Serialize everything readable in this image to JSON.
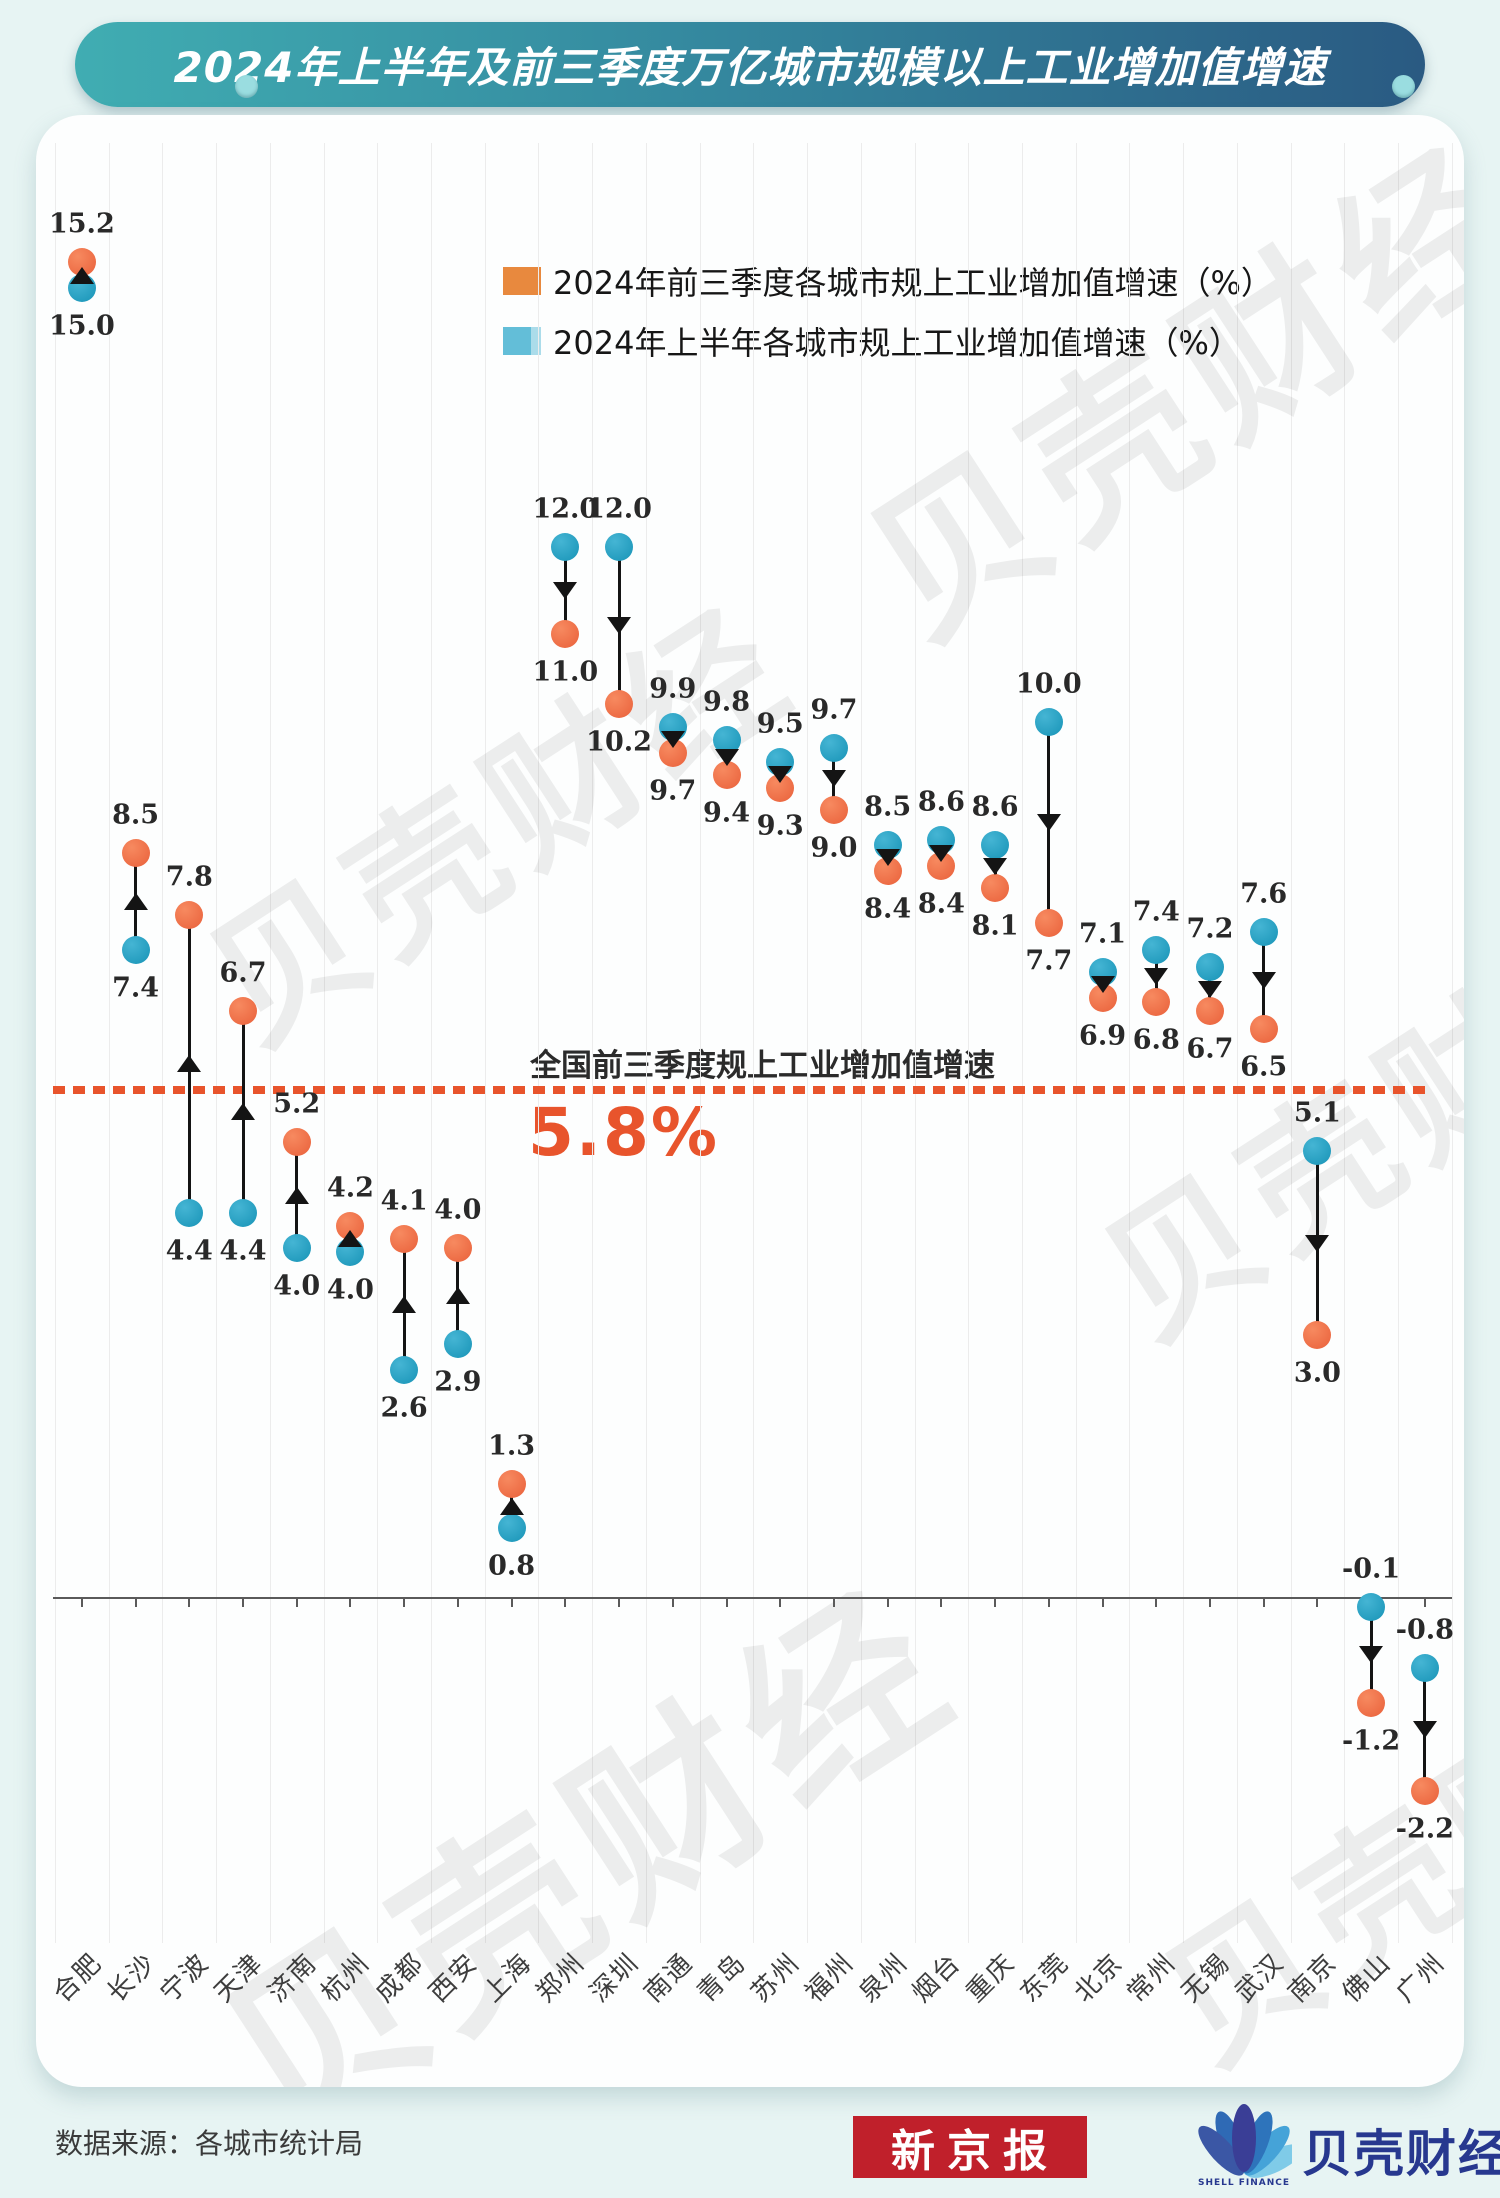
{
  "header": {
    "title": "2024年上半年及前三季度万亿城市规模以上工业增加值增速"
  },
  "chart_data": {
    "type": "dumbbell",
    "categories": [
      "合肥",
      "长沙",
      "宁波",
      "天津",
      "济南",
      "杭州",
      "成都",
      "西安",
      "上海",
      "郑州",
      "深圳",
      "南通",
      "青岛",
      "苏州",
      "福州",
      "泉州",
      "烟台",
      "重庆",
      "东莞",
      "北京",
      "常州",
      "无锡",
      "武汉",
      "南京",
      "佛山",
      "广州"
    ],
    "series": [
      {
        "name": "2024年前三季度各城市规上工业增加值增速（%）",
        "color": "#ed6a41",
        "legend_color": "#e8893e",
        "values": [
          15.2,
          8.5,
          7.8,
          6.7,
          5.2,
          4.2,
          4.1,
          4.0,
          1.3,
          11.0,
          10.2,
          9.7,
          9.4,
          9.3,
          9.0,
          8.4,
          8.4,
          8.1,
          7.7,
          6.9,
          6.8,
          6.7,
          6.5,
          3.0,
          -1.2,
          -2.2
        ]
      },
      {
        "name": "2024年上半年各城市规上工业增加值增速（%）",
        "color": "#1f9fc0",
        "legend_color": "#63bed8",
        "values": [
          15.0,
          7.4,
          4.4,
          4.4,
          4.0,
          4.0,
          2.6,
          2.9,
          0.8,
          12.0,
          12.0,
          9.9,
          9.8,
          9.5,
          9.7,
          8.5,
          8.6,
          8.6,
          10.0,
          7.1,
          7.4,
          7.2,
          7.6,
          5.1,
          -0.1,
          -0.8
        ]
      }
    ],
    "reference_line": {
      "label": "全国前三季度规上工业增加值增速",
      "value": 5.8,
      "value_label": "5.8%",
      "color": "#e8542c"
    },
    "ylim": [
      -3.2,
      16.6
    ],
    "grid": "vertical-only",
    "legend_position": "top-center",
    "marker_trend": "black arrow between paired dots points from first-half value toward first-three-quarters value"
  },
  "watermark": {
    "text": "贝壳财经"
  },
  "footer": {
    "source": "数据来源：各城市统计局",
    "newspaper_logo": "新京报",
    "finance_logo": "贝壳财经",
    "finance_logo_sub": "SHELL FINANCE"
  }
}
